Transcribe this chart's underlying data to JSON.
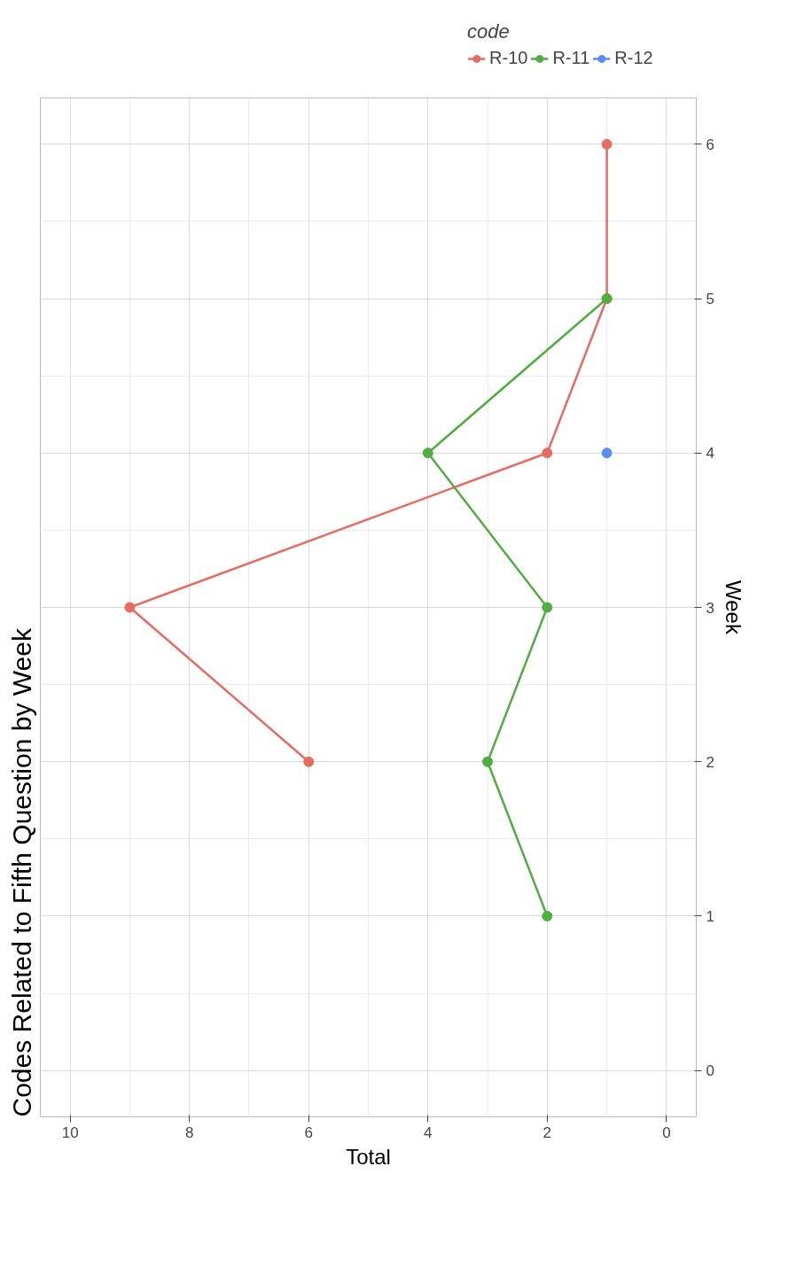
{
  "chart_data": {
    "type": "line",
    "title": "Codes Related to Fifth Question by Week",
    "xlabel": "Total",
    "ylabel": "Week",
    "legend_title": "code",
    "series": [
      {
        "name": "R-10",
        "color": "#e76b61",
        "x": [
          6,
          9,
          2,
          1,
          1
        ],
        "values": [
          2,
          3,
          4,
          5,
          6
        ]
      },
      {
        "name": "R-11",
        "color": "#4fae3f",
        "x": [
          2,
          3,
          2,
          4,
          1
        ],
        "values": [
          1,
          2,
          3,
          4,
          5
        ]
      },
      {
        "name": "R-12",
        "color": "#5b8cf5",
        "x": [
          1
        ],
        "values": [
          4
        ]
      }
    ],
    "xlim": [
      10.5,
      -0.5
    ],
    "xticks": [
      0,
      2,
      4,
      6,
      8,
      10
    ],
    "ylim": [
      -0.3,
      6.3
    ],
    "yticks": [
      0,
      1,
      2,
      3,
      4,
      5,
      6
    ],
    "grid": true,
    "legend": "top right",
    "marker": "circle",
    "line_style": "solid"
  }
}
